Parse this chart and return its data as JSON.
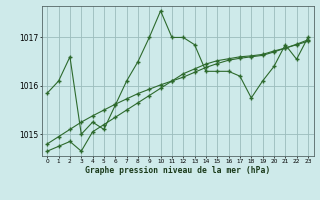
{
  "title": "Graphe pression niveau de la mer (hPa)",
  "bg_color": "#ceeaea",
  "grid_color": "#9bbcbc",
  "line_color": "#2d6a2d",
  "x_ticks": [
    0,
    1,
    2,
    3,
    4,
    5,
    6,
    7,
    8,
    9,
    10,
    11,
    12,
    13,
    14,
    15,
    16,
    17,
    18,
    19,
    20,
    21,
    22,
    23
  ],
  "ylim": [
    1014.55,
    1017.65
  ],
  "yticks": [
    1015,
    1016,
    1017
  ],
  "series1": [
    1015.85,
    1016.1,
    1016.6,
    1015.0,
    1015.25,
    1015.1,
    1015.6,
    1016.1,
    1016.5,
    1017.0,
    1017.55,
    1017.0,
    1017.0,
    1016.85,
    1016.3,
    1016.3,
    1016.3,
    1016.2,
    1015.75,
    1016.1,
    1016.4,
    1016.85,
    1016.55,
    1017.0
  ],
  "series2": [
    1014.65,
    1014.75,
    1014.85,
    1014.65,
    1015.05,
    1015.2,
    1015.35,
    1015.5,
    1015.65,
    1015.8,
    1015.95,
    1016.1,
    1016.25,
    1016.35,
    1016.45,
    1016.52,
    1016.56,
    1016.6,
    1016.62,
    1016.65,
    1016.72,
    1016.78,
    1016.85,
    1016.92
  ],
  "series3": [
    1014.8,
    1014.95,
    1015.1,
    1015.25,
    1015.38,
    1015.5,
    1015.62,
    1015.73,
    1015.84,
    1015.93,
    1016.02,
    1016.1,
    1016.18,
    1016.28,
    1016.38,
    1016.46,
    1016.53,
    1016.57,
    1016.6,
    1016.63,
    1016.7,
    1016.78,
    1016.86,
    1016.95
  ]
}
